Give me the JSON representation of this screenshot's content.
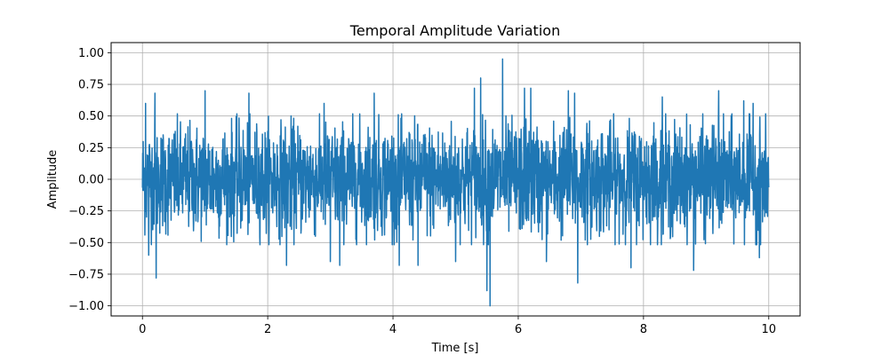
{
  "chart_data": {
    "type": "line",
    "title": "Temporal Amplitude Variation",
    "xlabel": "Time [s]",
    "ylabel": "Amplitude",
    "xlim": [
      -0.5,
      10.5
    ],
    "ylim": [
      -1.08,
      1.08
    ],
    "xticks": [
      0,
      2,
      4,
      6,
      8,
      10
    ],
    "xtick_labels": [
      "0",
      "2",
      "4",
      "6",
      "8",
      "10"
    ],
    "yticks": [
      -1.0,
      -0.75,
      -0.5,
      -0.25,
      0.0,
      0.25,
      0.5,
      0.75,
      1.0
    ],
    "ytick_labels": [
      "−1.00",
      "−0.75",
      "−0.50",
      "−0.25",
      "0.00",
      "0.25",
      "0.50",
      "0.75",
      "1.00"
    ],
    "grid": true,
    "series": [
      {
        "color": "#1f77b4",
        "envelope": {
          "x_range": [
            0,
            10
          ],
          "typical_range": [
            -0.45,
            0.45
          ],
          "peaks": [
            {
              "x": 0.05,
              "y": 0.6
            },
            {
              "x": 0.2,
              "y": 0.68
            },
            {
              "x": 0.1,
              "y": -0.6
            },
            {
              "x": 0.22,
              "y": -0.78
            },
            {
              "x": 1.0,
              "y": 0.7
            },
            {
              "x": 1.7,
              "y": 0.68
            },
            {
              "x": 2.3,
              "y": 0.68
            },
            {
              "x": 2.3,
              "y": -0.68
            },
            {
              "x": 2.9,
              "y": 0.6
            },
            {
              "x": 3.0,
              "y": -0.65
            },
            {
              "x": 3.15,
              "y": -0.68
            },
            {
              "x": 3.7,
              "y": 0.68
            },
            {
              "x": 4.1,
              "y": -0.68
            },
            {
              "x": 4.4,
              "y": -0.68
            },
            {
              "x": 5.0,
              "y": -0.65
            },
            {
              "x": 5.3,
              "y": 0.72
            },
            {
              "x": 5.4,
              "y": 0.8
            },
            {
              "x": 5.5,
              "y": 0.9
            },
            {
              "x": 5.5,
              "y": -0.88
            },
            {
              "x": 5.55,
              "y": -1.0
            },
            {
              "x": 5.75,
              "y": 0.95
            },
            {
              "x": 6.1,
              "y": 0.72
            },
            {
              "x": 6.2,
              "y": 0.72
            },
            {
              "x": 6.45,
              "y": -0.65
            },
            {
              "x": 6.8,
              "y": 0.7
            },
            {
              "x": 6.9,
              "y": 0.68
            },
            {
              "x": 6.95,
              "y": -0.82
            },
            {
              "x": 7.8,
              "y": 0.68
            },
            {
              "x": 7.8,
              "y": -0.7
            },
            {
              "x": 8.3,
              "y": 0.65
            },
            {
              "x": 8.8,
              "y": -0.72
            },
            {
              "x": 9.2,
              "y": 0.7
            },
            {
              "x": 9.6,
              "y": 0.62
            },
            {
              "x": 9.75,
              "y": 0.6
            },
            {
              "x": 9.85,
              "y": -0.62
            }
          ]
        }
      }
    ]
  }
}
